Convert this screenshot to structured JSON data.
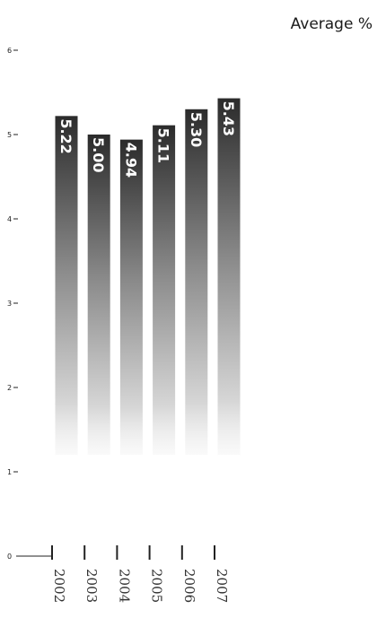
{
  "chart_data": {
    "type": "bar",
    "title": "Average %",
    "categories": [
      "2002",
      "2003",
      "2004",
      "2005",
      "2006",
      "2007"
    ],
    "values": [
      5.22,
      5.0,
      4.94,
      5.11,
      5.3,
      5.43
    ],
    "value_labels": [
      "5.22",
      "5.00",
      "4.94",
      "5.11",
      "5.30",
      "5.43"
    ],
    "yticks": [
      "0",
      "1",
      "2",
      "3",
      "4",
      "5",
      "6"
    ],
    "ylim": [
      0,
      6
    ],
    "grid": false,
    "legend": "none",
    "colors": {
      "bar_top": "#2b2b2b",
      "bar_mid": "#8a8a8a",
      "bar_bottom": "#f4f4f4",
      "value_text": "#ffffff",
      "axis": "#222222"
    }
  }
}
